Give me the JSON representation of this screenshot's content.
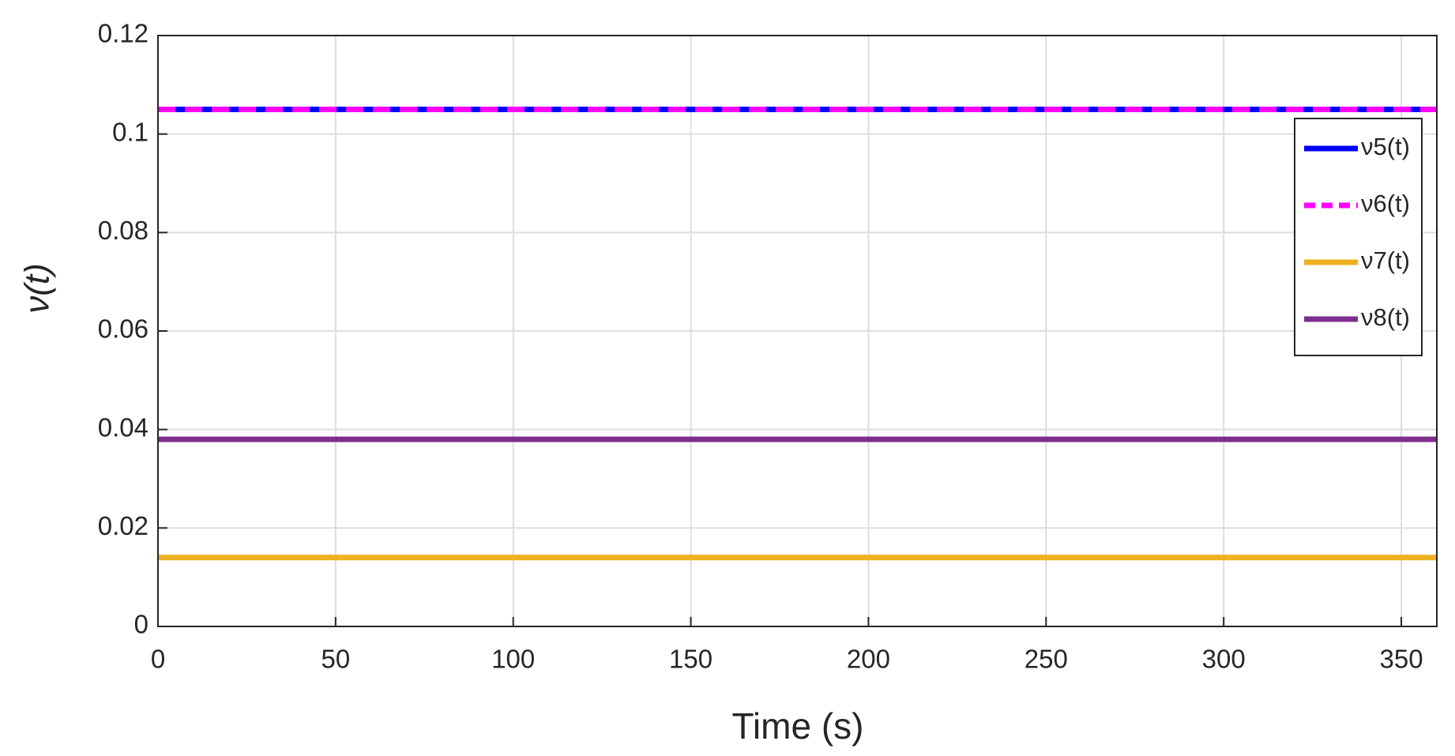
{
  "chart_data": {
    "type": "line",
    "xlabel": "Time (s)",
    "ylabel": "ν(t)",
    "x": [
      0,
      360
    ],
    "series": [
      {
        "name": "ν5(t)",
        "color": "#0000ff",
        "linestyle": "solid",
        "values": [
          0.105,
          0.105
        ]
      },
      {
        "name": "ν6(t)",
        "color": "#ff00ff",
        "linestyle": "dashed",
        "values": [
          0.105,
          0.105
        ]
      },
      {
        "name": "ν7(t)",
        "color": "#edb120",
        "linestyle": "solid",
        "values": [
          0.014,
          0.014
        ]
      },
      {
        "name": "ν8(t)",
        "color": "#7e2f8e",
        "linestyle": "solid",
        "values": [
          0.038,
          0.038
        ]
      }
    ],
    "xlim": [
      0,
      360
    ],
    "xticks": [
      0,
      50,
      100,
      150,
      200,
      250,
      300,
      350
    ],
    "ylim": [
      0,
      0.12
    ],
    "yticks": [
      0,
      0.02,
      0.04,
      0.06,
      0.08,
      0.1,
      0.12
    ],
    "grid": true,
    "legend": "upper right"
  }
}
